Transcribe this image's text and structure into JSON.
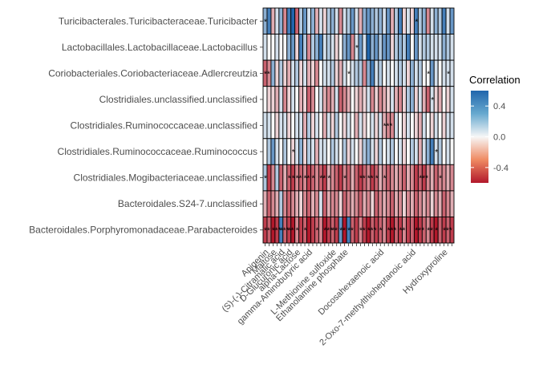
{
  "chart_data": {
    "type": "heatmap",
    "rows": [
      "Turicibacterales.Turicibacteraceae.Turicibacter",
      "Lactobacillales.Lactobacillaceae.Lactobacillus",
      "Coriobacteriales.Coriobacteriaceae.Adlercreutzia",
      "Clostridiales.unclassified.unclassified",
      "Clostridiales.Ruminococcaceae.unclassified",
      "Clostridiales.Ruminococcaceae.Ruminococcus",
      "Clostridiales.Mogibacteriaceae.unclassified",
      "Bacteroidales.S24-7.unclassified",
      "Bacteroidales.Porphyromonadaceae.Parabacteroides"
    ],
    "n_columns": 48,
    "visible_column_labels": [
      "Apigenin",
      "Maltose",
      "(S)-(-)-Citramalic acid",
      "D-Glucuronic acid",
      "alpha-Lactose",
      "gamma-Aminobutyric acid",
      "L-Methionine sulfoxide",
      "Ethanolamine phosphate",
      "Docosahexaenoic acid",
      "2-Oxo-7-methylthioheptanoic acid",
      "Hydroxyproline"
    ],
    "values": [
      [
        0.3,
        0.5,
        -0.2,
        0.1,
        0.3,
        -0.3,
        0.5,
        0.6,
        -0.4,
        0.2,
        0.4,
        0.1,
        0.3,
        -0.2,
        0.1,
        -0.1,
        0.2,
        0.3,
        0.1,
        -0.3,
        0.1,
        0.2,
        0.4,
        0.1,
        -0.2,
        0.3,
        0.4,
        0.3,
        0.2,
        0.3,
        0.1,
        0.4,
        -0.2,
        0.2,
        0.5,
        -0.1,
        0.1,
        -0.1,
        0.5,
        0.2,
        0.3,
        -0.3,
        0.1,
        0.3,
        0.2,
        0.5,
        0.1,
        0.4
      ],
      [
        0.1,
        0.0,
        0.0,
        0.1,
        0.0,
        0.0,
        0.3,
        0.4,
        -0.1,
        0.5,
        0.2,
        -0.3,
        0.2,
        0.3,
        0.5,
        0.1,
        0.2,
        0.1,
        -0.1,
        0.0,
        0.3,
        0.4,
        -0.3,
        0.1,
        0.4,
        0.1,
        0.6,
        0.3,
        0.4,
        0.2,
        0.4,
        0.4,
        -0.1,
        0.2,
        0.3,
        0.2,
        0.5,
        0.0,
        0.4,
        0.1,
        0.2,
        0.2,
        0.1,
        0.1,
        0.1,
        0.3,
        0.2,
        0.1
      ],
      [
        -0.4,
        -0.3,
        0.3,
        -0.1,
        0.2,
        -0.1,
        -0.2,
        0.1,
        0.2,
        -0.1,
        0.1,
        -0.2,
        -0.1,
        -0.3,
        0.0,
        0.1,
        0.1,
        0.2,
        -0.1,
        -0.2,
        0.1,
        0.0,
        0.1,
        0.2,
        0.2,
        -0.3,
        0.3,
        0.5,
        0.1,
        0.2,
        0.0,
        0.1,
        0.0,
        0.1,
        0.2,
        0.1,
        -0.1,
        0.3,
        0.1,
        0.2,
        0.0,
        0.0,
        0.4,
        0.1,
        0.0,
        0.1,
        0.1,
        0.1
      ],
      [
        0.0,
        -0.1,
        -0.1,
        -0.2,
        0.1,
        -0.3,
        -0.1,
        0.1,
        0.0,
        -0.2,
        -0.1,
        -0.4,
        -0.3,
        0.0,
        0.1,
        -0.2,
        -0.3,
        -0.2,
        0.1,
        -0.4,
        -0.3,
        -0.2,
        0.0,
        -0.1,
        -0.2,
        -0.1,
        0.1,
        -0.3,
        -0.1,
        -0.3,
        -0.2,
        -0.1,
        0.1,
        -0.2,
        -0.3,
        -0.1,
        0.2,
        0.3,
        -0.1,
        0.1,
        -0.2,
        -0.4,
        0.1,
        -0.1,
        -0.2,
        0.0,
        -0.1,
        0.1
      ],
      [
        0.1,
        0.1,
        0.0,
        -0.1,
        0.1,
        0.1,
        -0.1,
        0.0,
        0.1,
        0.1,
        -0.2,
        0.2,
        -0.1,
        0.1,
        0.0,
        -0.2,
        0.1,
        -0.1,
        0.2,
        0.0,
        -0.1,
        0.1,
        0.0,
        -0.2,
        0.1,
        -0.1,
        0.0,
        0.1,
        -0.1,
        0.1,
        -0.2,
        -0.3,
        -0.3,
        0.1,
        0.0,
        -0.1,
        0.1,
        0.0,
        -0.1,
        -0.2,
        0.1,
        0.0,
        -0.1,
        0.1,
        0.0,
        -0.1,
        0.1,
        0.1
      ],
      [
        0.0,
        0.2,
        0.4,
        0.1,
        0.0,
        0.2,
        0.0,
        -0.1,
        0.1,
        0.3,
        -0.1,
        0.2,
        0.1,
        -0.2,
        0.1,
        0.1,
        0.0,
        0.2,
        0.1,
        0.0,
        0.2,
        -0.1,
        0.1,
        0.0,
        -0.1,
        0.2,
        0.3,
        0.1,
        -0.1,
        0.2,
        0.0,
        0.1,
        0.2,
        0.0,
        0.1,
        -0.1,
        0.0,
        0.2,
        0.1,
        -0.2,
        0.1,
        0.3,
        0.5,
        0.1,
        0.2,
        0.0,
        0.1,
        0.0
      ],
      [
        0.2,
        -0.5,
        -0.3,
        0.2,
        -0.4,
        -0.2,
        -0.4,
        -0.5,
        -0.3,
        -0.4,
        -0.3,
        -0.5,
        -0.4,
        -0.3,
        -0.4,
        -0.5,
        -0.2,
        -0.3,
        -0.4,
        -0.5,
        -0.3,
        -0.4,
        -0.2,
        -0.4,
        -0.5,
        -0.4,
        -0.3,
        -0.5,
        -0.4,
        -0.2,
        -0.3,
        -0.4,
        -0.3,
        -0.2,
        -0.3,
        -0.4,
        -0.2,
        -0.3,
        -0.5,
        -0.4,
        -0.5,
        -0.3,
        -0.2,
        -0.4,
        -0.3,
        -0.3,
        -0.2,
        -0.3
      ],
      [
        -0.2,
        -0.4,
        -0.3,
        -0.2,
        0.2,
        -0.3,
        -0.4,
        -0.3,
        -0.2,
        -0.1,
        -0.3,
        -0.4,
        -0.2,
        -0.3,
        0.1,
        -0.4,
        -0.2,
        -0.3,
        -0.3,
        -0.1,
        -0.4,
        -0.3,
        -0.2,
        -0.3,
        -0.4,
        -0.2,
        -0.3,
        -0.1,
        -0.4,
        -0.3,
        -0.2,
        -0.3,
        -0.4,
        -0.2,
        -0.3,
        -0.1,
        -0.3,
        -0.2,
        -0.4,
        -0.3,
        -0.2,
        -0.3,
        -0.1,
        -0.3,
        -0.2,
        -0.4,
        -0.3,
        -0.2
      ],
      [
        -0.5,
        -0.4,
        -0.6,
        -0.5,
        0.5,
        -0.4,
        -0.5,
        -0.6,
        -0.3,
        -0.5,
        -0.4,
        -0.6,
        -0.5,
        -0.4,
        -0.3,
        -0.6,
        -0.5,
        -0.4,
        -0.5,
        0.4,
        -0.6,
        0.5,
        -0.4,
        -0.5,
        -0.3,
        -0.5,
        -0.6,
        -0.4,
        -0.5,
        -0.4,
        -0.3,
        -0.5,
        -0.6,
        -0.4,
        -0.5,
        -0.3,
        -0.5,
        -0.4,
        -0.6,
        -0.5,
        -0.4,
        -0.3,
        -0.5,
        -0.6,
        -0.4,
        -0.5,
        -0.4,
        -0.5
      ]
    ],
    "significance_marks": [
      {
        "row": 0,
        "col": 0,
        "mark": "*"
      },
      {
        "row": 0,
        "col": 38,
        "mark": "*"
      },
      {
        "row": 1,
        "col": 23,
        "mark": "*"
      },
      {
        "row": 2,
        "col": 0,
        "mark": "**"
      },
      {
        "row": 2,
        "col": 21,
        "mark": "*"
      },
      {
        "row": 2,
        "col": 41,
        "mark": "*"
      },
      {
        "row": 2,
        "col": 46,
        "mark": "*"
      },
      {
        "row": 3,
        "col": 42,
        "mark": "*"
      },
      {
        "row": 4,
        "col": 30,
        "mark": "***"
      },
      {
        "row": 5,
        "col": 7,
        "mark": "*"
      },
      {
        "row": 5,
        "col": 43,
        "mark": "*"
      },
      {
        "row": 6,
        "col": 0,
        "mark": "*"
      },
      {
        "row": 6,
        "col": 6,
        "mark": "*"
      },
      {
        "row": 6,
        "col": 7,
        "mark": "*"
      },
      {
        "row": 6,
        "col": 8,
        "mark": "**"
      },
      {
        "row": 6,
        "col": 10,
        "mark": "**"
      },
      {
        "row": 6,
        "col": 12,
        "mark": "*"
      },
      {
        "row": 6,
        "col": 14,
        "mark": "**"
      },
      {
        "row": 6,
        "col": 16,
        "mark": "*"
      },
      {
        "row": 6,
        "col": 20,
        "mark": "*"
      },
      {
        "row": 6,
        "col": 24,
        "mark": "**"
      },
      {
        "row": 6,
        "col": 26,
        "mark": "**"
      },
      {
        "row": 6,
        "col": 28,
        "mark": "*"
      },
      {
        "row": 6,
        "col": 30,
        "mark": "*"
      },
      {
        "row": 6,
        "col": 39,
        "mark": "***"
      },
      {
        "row": 6,
        "col": 44,
        "mark": "*"
      },
      {
        "row": 8,
        "col": 0,
        "mark": "**"
      },
      {
        "row": 8,
        "col": 2,
        "mark": "***"
      },
      {
        "row": 8,
        "col": 4,
        "mark": "***"
      },
      {
        "row": 8,
        "col": 6,
        "mark": "**"
      },
      {
        "row": 8,
        "col": 8,
        "mark": "*"
      },
      {
        "row": 8,
        "col": 10,
        "mark": "*"
      },
      {
        "row": 8,
        "col": 13,
        "mark": "*"
      },
      {
        "row": 8,
        "col": 15,
        "mark": "***"
      },
      {
        "row": 8,
        "col": 17,
        "mark": "**"
      },
      {
        "row": 8,
        "col": 19,
        "mark": "**"
      },
      {
        "row": 8,
        "col": 21,
        "mark": "**"
      },
      {
        "row": 8,
        "col": 24,
        "mark": "**"
      },
      {
        "row": 8,
        "col": 26,
        "mark": "***"
      },
      {
        "row": 8,
        "col": 29,
        "mark": "*"
      },
      {
        "row": 8,
        "col": 31,
        "mark": "***"
      },
      {
        "row": 8,
        "col": 34,
        "mark": "**"
      },
      {
        "row": 8,
        "col": 38,
        "mark": "***"
      },
      {
        "row": 8,
        "col": 41,
        "mark": "**"
      },
      {
        "row": 8,
        "col": 43,
        "mark": "*"
      },
      {
        "row": 8,
        "col": 45,
        "mark": "***"
      }
    ],
    "color_scale": {
      "low": "#b2182b",
      "mid": "#f7f7f7",
      "high": "#2166ac",
      "limits": [
        -0.6,
        0.6
      ]
    },
    "legend": {
      "title": "Correlation",
      "ticks": [
        "0.4",
        "0.0",
        "-0.4"
      ],
      "tick_values": [
        0.4,
        0.0,
        -0.4
      ],
      "placement": "right"
    },
    "grid": false
  }
}
